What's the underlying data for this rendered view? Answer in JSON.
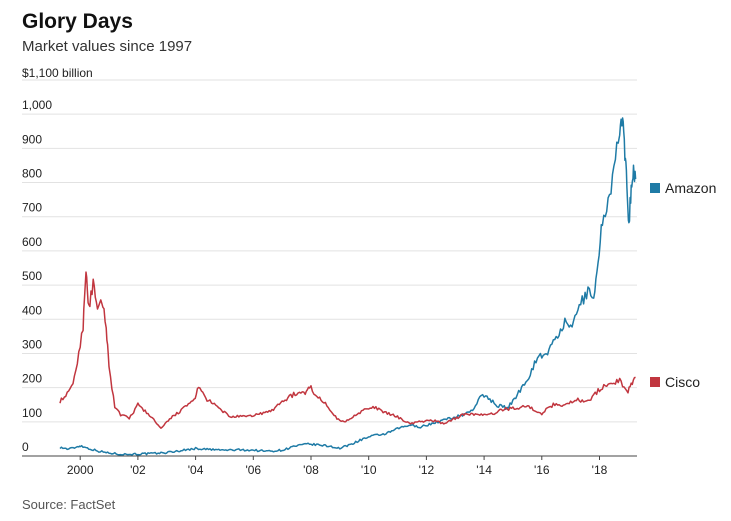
{
  "header": {
    "title": "Glory Days",
    "subtitle": "Market values since 1997",
    "unit_label": "$1,100 billion"
  },
  "source": "Source: FactSet",
  "chart_data": {
    "type": "line",
    "title": "Glory Days",
    "subtitle": "Market values since 1997",
    "ylabel": "$ billion",
    "xlabel": "",
    "ylim": [
      0,
      1100
    ],
    "xlim": [
      1999.3,
      2019.3
    ],
    "yticks": [
      0,
      100,
      200,
      300,
      400,
      500,
      600,
      700,
      800,
      900,
      1000
    ],
    "ytick_labels": [
      "0",
      "100",
      "200",
      "300",
      "400",
      "500",
      "600",
      "700",
      "800",
      "900",
      "1,000"
    ],
    "xticks": [
      2000,
      2002,
      2004,
      2006,
      2008,
      2010,
      2012,
      2014,
      2016,
      2018
    ],
    "xtick_labels": [
      "2000",
      "'02",
      "'04",
      "'06",
      "'08",
      "'10",
      "'12",
      "'14",
      "'16",
      "'18"
    ],
    "grid": true,
    "legend": "right, at line ends",
    "series": [
      {
        "name": "Amazon",
        "color": "#1f7ba6",
        "points": [
          [
            1999.3,
            25
          ],
          [
            1999.6,
            20
          ],
          [
            1999.9,
            27
          ],
          [
            2000.0,
            30
          ],
          [
            2000.3,
            22
          ],
          [
            2000.6,
            15
          ],
          [
            2000.9,
            10
          ],
          [
            2001.2,
            7
          ],
          [
            2001.6,
            5
          ],
          [
            2002.0,
            6
          ],
          [
            2002.5,
            7
          ],
          [
            2003.0,
            10
          ],
          [
            2003.5,
            16
          ],
          [
            2004.0,
            22
          ],
          [
            2004.5,
            19
          ],
          [
            2005.0,
            17
          ],
          [
            2005.5,
            18
          ],
          [
            2006.0,
            17
          ],
          [
            2006.5,
            14
          ],
          [
            2007.0,
            17
          ],
          [
            2007.4,
            28
          ],
          [
            2007.9,
            35
          ],
          [
            2008.3,
            32
          ],
          [
            2008.7,
            28
          ],
          [
            2009.0,
            22
          ],
          [
            2009.4,
            35
          ],
          [
            2009.8,
            50
          ],
          [
            2010.2,
            60
          ],
          [
            2010.6,
            65
          ],
          [
            2011.0,
            80
          ],
          [
            2011.4,
            90
          ],
          [
            2011.8,
            85
          ],
          [
            2012.0,
            90
          ],
          [
            2012.4,
            100
          ],
          [
            2012.8,
            110
          ],
          [
            2013.2,
            118
          ],
          [
            2013.6,
            135
          ],
          [
            2013.9,
            175
          ],
          [
            2014.1,
            175
          ],
          [
            2014.4,
            150
          ],
          [
            2014.8,
            140
          ],
          [
            2015.0,
            160
          ],
          [
            2015.3,
            200
          ],
          [
            2015.6,
            240
          ],
          [
            2015.9,
            300
          ],
          [
            2016.1,
            290
          ],
          [
            2016.4,
            330
          ],
          [
            2016.8,
            390
          ],
          [
            2017.0,
            370
          ],
          [
            2017.3,
            440
          ],
          [
            2017.6,
            480
          ],
          [
            2017.8,
            470
          ],
          [
            2017.95,
            560
          ],
          [
            2018.1,
            690
          ],
          [
            2018.3,
            750
          ],
          [
            2018.5,
            830
          ],
          [
            2018.7,
            950
          ],
          [
            2018.8,
            990
          ],
          [
            2018.88,
            870
          ],
          [
            2018.95,
            800
          ],
          [
            2019.02,
            680
          ],
          [
            2019.1,
            790
          ],
          [
            2019.18,
            830
          ],
          [
            2019.25,
            810
          ]
        ]
      },
      {
        "name": "Cisco",
        "color": "#c1363f",
        "points": [
          [
            1999.3,
            160
          ],
          [
            1999.5,
            175
          ],
          [
            1999.7,
            200
          ],
          [
            1999.9,
            270
          ],
          [
            2000.1,
            380
          ],
          [
            2000.2,
            550
          ],
          [
            2000.3,
            430
          ],
          [
            2000.45,
            505
          ],
          [
            2000.6,
            420
          ],
          [
            2000.75,
            455
          ],
          [
            2000.9,
            380
          ],
          [
            2001.0,
            260
          ],
          [
            2001.2,
            145
          ],
          [
            2001.4,
            120
          ],
          [
            2001.7,
            110
          ],
          [
            2002.0,
            150
          ],
          [
            2002.4,
            120
          ],
          [
            2002.8,
            80
          ],
          [
            2003.2,
            115
          ],
          [
            2003.6,
            140
          ],
          [
            2003.95,
            165
          ],
          [
            2004.1,
            200
          ],
          [
            2004.4,
            165
          ],
          [
            2004.8,
            140
          ],
          [
            2005.2,
            115
          ],
          [
            2005.8,
            115
          ],
          [
            2006.3,
            125
          ],
          [
            2006.6,
            130
          ],
          [
            2007.0,
            160
          ],
          [
            2007.4,
            180
          ],
          [
            2007.8,
            185
          ],
          [
            2007.95,
            205
          ],
          [
            2008.2,
            175
          ],
          [
            2008.6,
            145
          ],
          [
            2008.95,
            105
          ],
          [
            2009.2,
            100
          ],
          [
            2009.6,
            125
          ],
          [
            2010.0,
            140
          ],
          [
            2010.3,
            140
          ],
          [
            2010.6,
            125
          ],
          [
            2011.0,
            115
          ],
          [
            2011.4,
            95
          ],
          [
            2011.8,
            100
          ],
          [
            2012.2,
            105
          ],
          [
            2012.6,
            95
          ],
          [
            2013.0,
            110
          ],
          [
            2013.4,
            125
          ],
          [
            2013.8,
            120
          ],
          [
            2014.2,
            120
          ],
          [
            2014.6,
            135
          ],
          [
            2015.0,
            140
          ],
          [
            2015.5,
            145
          ],
          [
            2016.0,
            125
          ],
          [
            2016.4,
            150
          ],
          [
            2016.8,
            150
          ],
          [
            2017.2,
            165
          ],
          [
            2017.6,
            160
          ],
          [
            2018.0,
            195
          ],
          [
            2018.4,
            215
          ],
          [
            2018.7,
            220
          ],
          [
            2018.95,
            185
          ],
          [
            2019.1,
            210
          ],
          [
            2019.25,
            230
          ]
        ]
      }
    ]
  }
}
